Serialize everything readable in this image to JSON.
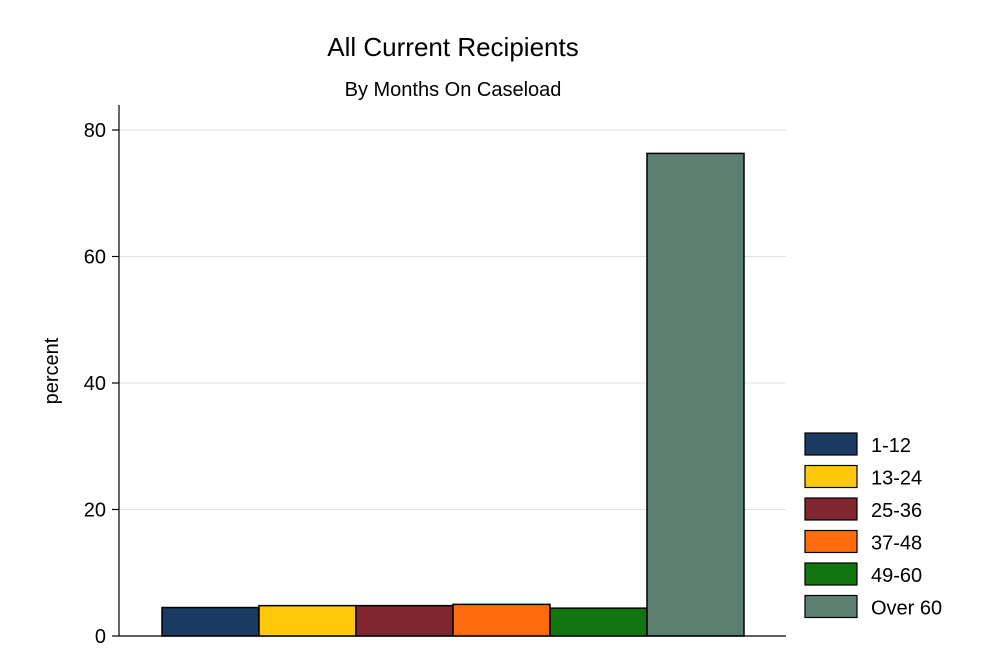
{
  "chart_data": {
    "type": "bar",
    "title": "All Current Recipients",
    "subtitle": "By Months On Caseload",
    "xlabel": "",
    "ylabel": "percent",
    "ylim": [
      0,
      84
    ],
    "yticks": [
      0,
      20,
      40,
      60,
      80
    ],
    "grid": true,
    "legend_position": "right",
    "categories": [
      "1-12",
      "13-24",
      "25-36",
      "37-48",
      "49-60",
      "Over 60"
    ],
    "values": [
      4.5,
      4.8,
      4.8,
      5.0,
      4.4,
      76.3
    ],
    "colors": [
      "#1a3a61",
      "#ffc80b",
      "#80262f",
      "#ff6b0d",
      "#127610",
      "#5d7f72"
    ]
  }
}
